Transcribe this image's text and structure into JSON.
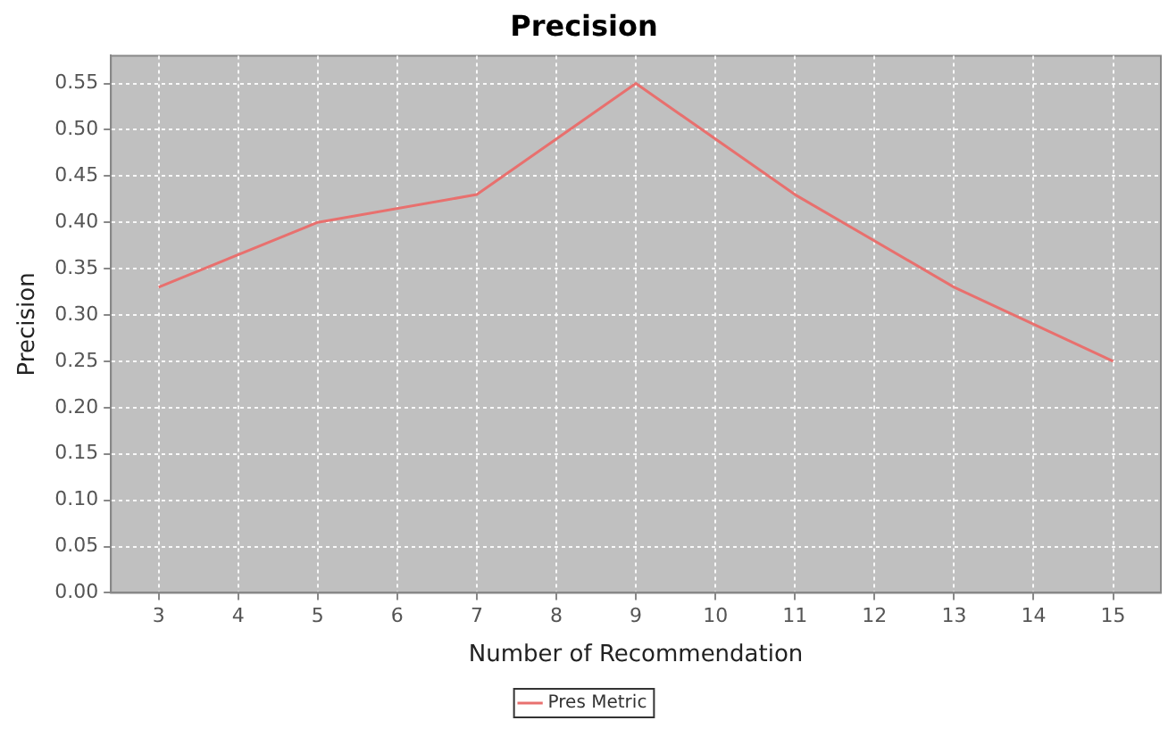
{
  "chart_data": {
    "type": "line",
    "title": "Precision",
    "xlabel": "Number of Recommendation",
    "ylabel": "Precision",
    "x": [
      3,
      5,
      7,
      9,
      11,
      13,
      15
    ],
    "series": [
      {
        "name": "Pres Metric",
        "color": "#e8706e",
        "values": [
          0.33,
          0.4,
          0.43,
          0.55,
          0.43,
          0.33,
          0.25
        ]
      }
    ],
    "xlim": [
      2.4,
      15.6
    ],
    "xticks": [
      3,
      4,
      5,
      6,
      7,
      8,
      9,
      10,
      11,
      12,
      13,
      14,
      15
    ],
    "ylim": [
      0,
      0.58
    ],
    "yticks": [
      {
        "value": 0,
        "label": "0.00"
      },
      {
        "value": 0.05,
        "label": "0.05"
      },
      {
        "value": 0.1,
        "label": "0.10"
      },
      {
        "value": 0.15,
        "label": "0.15"
      },
      {
        "value": 0.2,
        "label": "0.20"
      },
      {
        "value": 0.25,
        "label": "0.25"
      },
      {
        "value": 0.3,
        "label": "0.30"
      },
      {
        "value": 0.35,
        "label": "0.35"
      },
      {
        "value": 0.4,
        "label": "0.40"
      },
      {
        "value": 0.45,
        "label": "0.45"
      },
      {
        "value": 0.5,
        "label": "0.50"
      },
      {
        "value": 0.55,
        "label": "0.55"
      }
    ],
    "grid": true,
    "legend": "bottom",
    "marker": "none",
    "line_style": "solid"
  }
}
